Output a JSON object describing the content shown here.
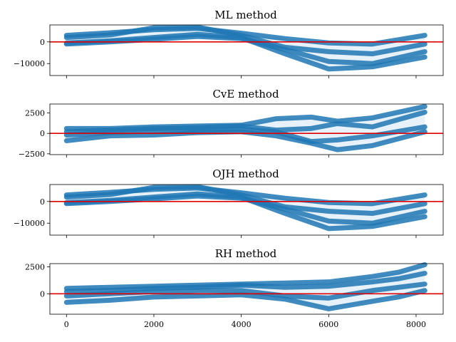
{
  "colors": {
    "series": "#1f77b4",
    "band": "#e3eef8",
    "reference_line": "#e00000"
  },
  "chart_data": [
    {
      "type": "line",
      "title": "ML method",
      "ylim": [
        -15500,
        7800
      ],
      "yticks": [
        0,
        -10000
      ],
      "ytick_labels": [
        "0",
        "−10000"
      ],
      "reference_line": 0,
      "series": [
        {
          "x": [
            0,
            1000,
            2000,
            3000,
            4000,
            5000,
            6000,
            7000,
            8200
          ],
          "y": [
            3000,
            4200,
            5600,
            6200,
            4000,
            1500,
            -500,
            -1000,
            3000
          ]
        },
        {
          "x": [
            0,
            1000,
            2000,
            3000,
            4000,
            5000,
            6000,
            7000,
            8200
          ],
          "y": [
            2000,
            3200,
            6500,
            6800,
            3000,
            -2500,
            -4500,
            -5500,
            -1000
          ]
        },
        {
          "x": [
            0,
            1000,
            2000,
            3000,
            4000,
            5000,
            6000,
            7000,
            8200
          ],
          "y": [
            -1000,
            0,
            1200,
            2500,
            1500,
            -3500,
            -9000,
            -10000,
            -4500
          ]
        },
        {
          "x": [
            0,
            1000,
            2000,
            3000,
            4000,
            5000,
            6000,
            7000,
            8200
          ],
          "y": [
            -500,
            500,
            2000,
            3500,
            2000,
            -5500,
            -12500,
            -11500,
            -7000
          ]
        }
      ]
    },
    {
      "type": "line",
      "title": "CvE method",
      "ylim": [
        -2600,
        3600
      ],
      "yticks": [
        2500,
        0,
        -2500
      ],
      "ytick_labels": [
        "2500",
        "0",
        "−2500"
      ],
      "reference_line": 0,
      "series": [
        {
          "x": [
            0,
            1000,
            2000,
            3000,
            4000,
            4800,
            5600,
            6200,
            7000,
            8200
          ],
          "y": [
            600,
            600,
            800,
            900,
            1000,
            1800,
            2000,
            1500,
            1900,
            3300
          ]
        },
        {
          "x": [
            0,
            1000,
            2000,
            3000,
            4000,
            4800,
            5600,
            6200,
            7000,
            8200
          ],
          "y": [
            200,
            400,
            600,
            700,
            900,
            400,
            600,
            1200,
            800,
            2600
          ]
        },
        {
          "x": [
            0,
            1000,
            2000,
            3000,
            4000,
            4800,
            5600,
            6200,
            7000,
            8200
          ],
          "y": [
            -200,
            100,
            300,
            400,
            500,
            200,
            -1000,
            -800,
            -300,
            800
          ]
        },
        {
          "x": [
            0,
            1000,
            2000,
            3000,
            4000,
            4800,
            5600,
            6200,
            7000,
            8200
          ],
          "y": [
            -900,
            -300,
            -200,
            100,
            200,
            -300,
            -1200,
            -2000,
            -1500,
            200
          ]
        }
      ]
    },
    {
      "type": "line",
      "title": "OJH method",
      "ylim": [
        -15500,
        7800
      ],
      "yticks": [
        0,
        -10000
      ],
      "ytick_labels": [
        "0",
        "−10000"
      ],
      "reference_line": 0,
      "series": [
        {
          "x": [
            0,
            1000,
            2000,
            3000,
            4000,
            5000,
            6000,
            7000,
            8200
          ],
          "y": [
            3000,
            4200,
            5600,
            6200,
            4000,
            1500,
            -500,
            -1000,
            3000
          ]
        },
        {
          "x": [
            0,
            1000,
            2000,
            3000,
            4000,
            5000,
            6000,
            7000,
            8200
          ],
          "y": [
            2000,
            3200,
            6500,
            6800,
            3000,
            -2500,
            -4500,
            -5500,
            -1000
          ]
        },
        {
          "x": [
            0,
            1000,
            2000,
            3000,
            4000,
            5000,
            6000,
            7000,
            8200
          ],
          "y": [
            -1000,
            0,
            1200,
            2500,
            1500,
            -3500,
            -9000,
            -10000,
            -4500
          ]
        },
        {
          "x": [
            0,
            1000,
            2000,
            3000,
            4000,
            5000,
            6000,
            7000,
            8200
          ],
          "y": [
            -500,
            500,
            2000,
            3500,
            2000,
            -5500,
            -12500,
            -11500,
            -7000
          ]
        }
      ]
    },
    {
      "type": "line",
      "title": "RH method",
      "ylim": [
        -1900,
        2800
      ],
      "yticks": [
        2500,
        0
      ],
      "ytick_labels": [
        "2500",
        "0"
      ],
      "reference_line": 0,
      "xticks": [
        0,
        2000,
        4000,
        6000,
        8000
      ],
      "xtick_labels": [
        "0",
        "2000",
        "4000",
        "6000",
        "8000"
      ],
      "series": [
        {
          "x": [
            0,
            1000,
            2000,
            3000,
            4000,
            5000,
            6000,
            7000,
            7600,
            8200
          ],
          "y": [
            500,
            600,
            700,
            800,
            900,
            1000,
            1100,
            1600,
            2000,
            2700
          ]
        },
        {
          "x": [
            0,
            1000,
            2000,
            3000,
            4000,
            5000,
            6000,
            7000,
            7600,
            8200
          ],
          "y": [
            200,
            300,
            500,
            600,
            800,
            600,
            700,
            1100,
            1400,
            1900
          ]
        },
        {
          "x": [
            0,
            1000,
            2000,
            3000,
            4000,
            5000,
            6000,
            7000,
            7600,
            8200
          ],
          "y": [
            -200,
            0,
            200,
            300,
            300,
            -200,
            -400,
            300,
            600,
            900
          ]
        },
        {
          "x": [
            0,
            1000,
            2000,
            3000,
            4000,
            5000,
            6000,
            7000,
            7600,
            8200
          ],
          "y": [
            -800,
            -600,
            -300,
            -200,
            -100,
            -500,
            -1400,
            -700,
            -300,
            300
          ]
        }
      ]
    }
  ]
}
